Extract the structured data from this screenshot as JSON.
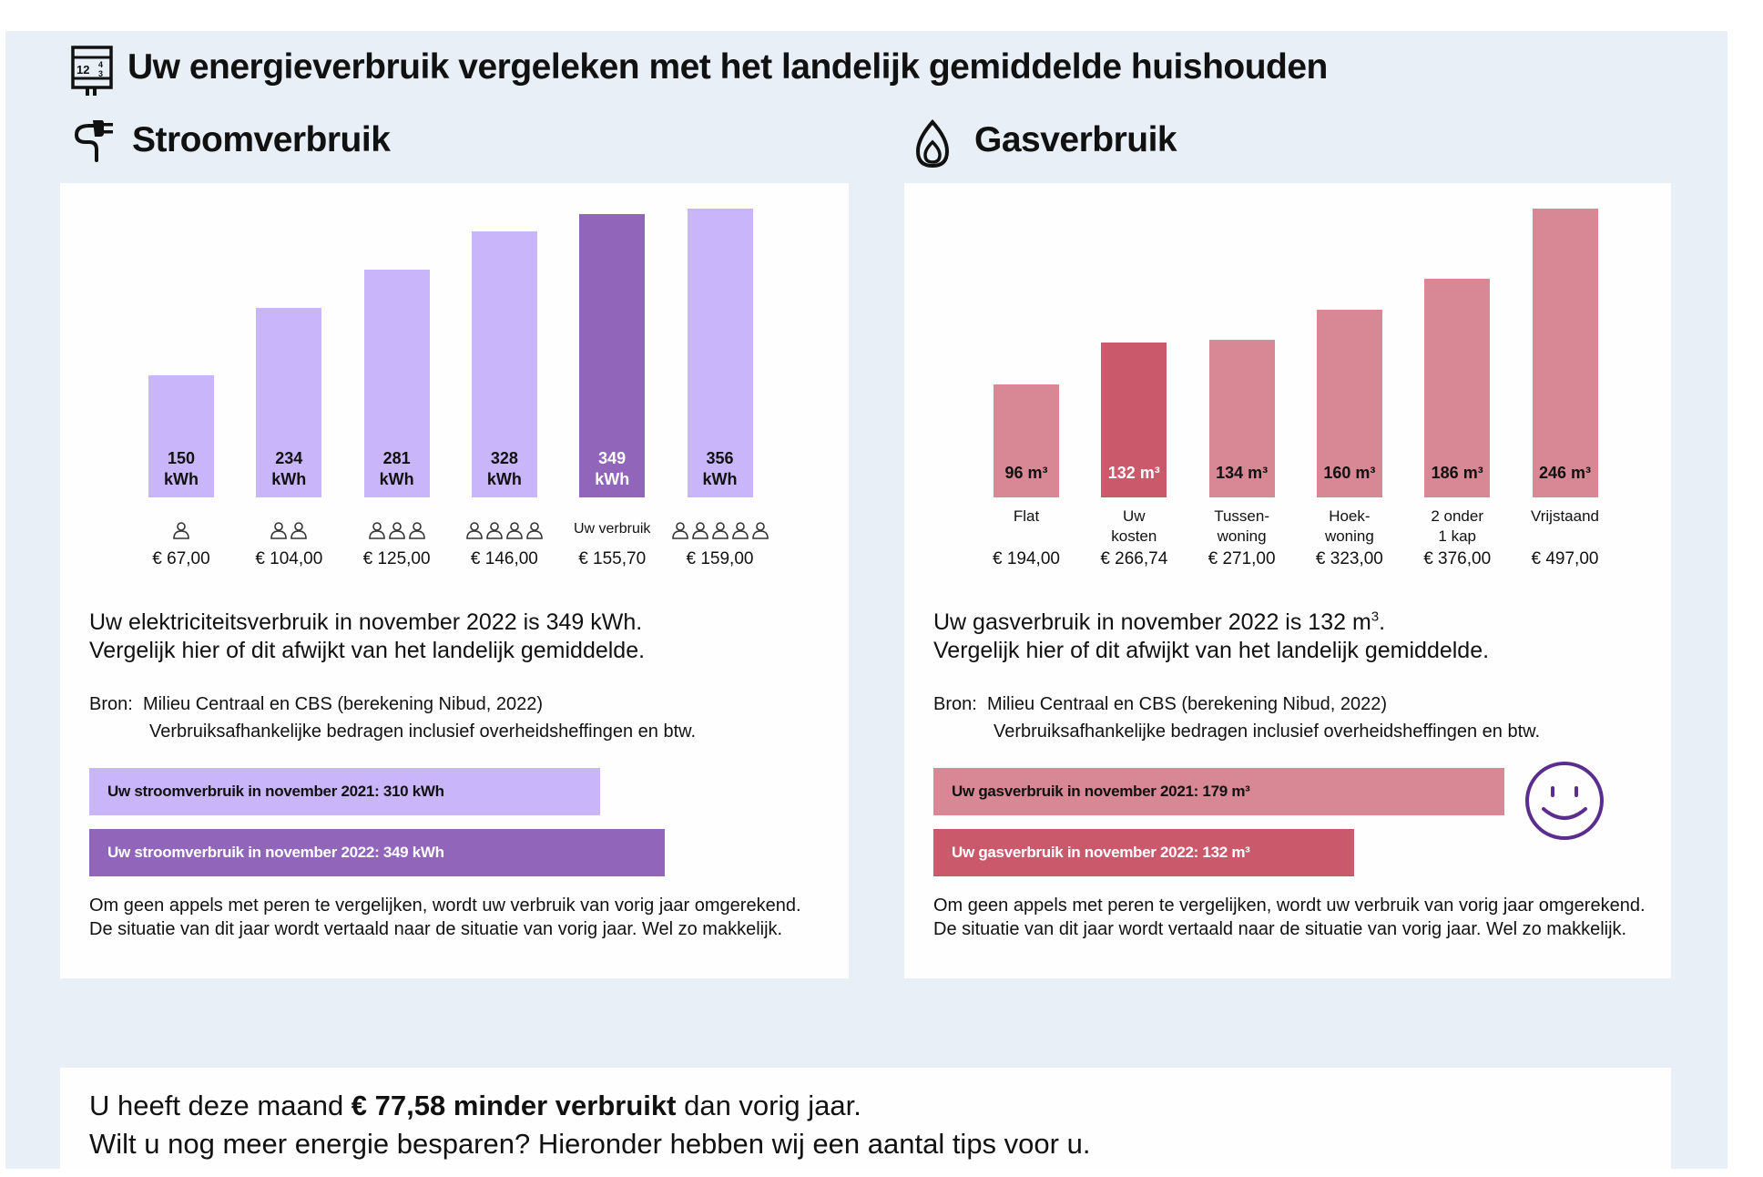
{
  "header": {
    "title": "Uw energieverbruik vergeleken met het landelijk gemiddelde huishouden",
    "icon": "meter-icon"
  },
  "stroom": {
    "title": "Stroomverbruik",
    "icon": "plug-icon",
    "intro_line1": "Uw elektriciteitsverbruik in november 2022 is 349 kWh.",
    "intro_line2": "Vergelijk hier of dit afwijkt van het landelijk gemiddelde.",
    "source_label": "Bron:",
    "source_line1": "Milieu Centraal en CBS (berekening Nibud, 2022)",
    "source_line2": "Verbruiksafhankelijke bedragen inclusief overheidsheffingen en btw.",
    "compare_2021": "Uw stroomverbruik in november 2021: 310 kWh",
    "compare_2022": "Uw stroomverbruik in november 2022: 349 kWh",
    "compare_values": [
      310,
      349
    ],
    "note": "Om geen appels met peren te vergelijken, wordt uw verbruik van vorig jaar omgerekend. De situatie van dit jaar wordt vertaald naar de situatie van vorig jaar. Wel zo makkelijk."
  },
  "gas": {
    "title": "Gasverbruik",
    "icon": "flame-icon",
    "intro_line1": "Uw gasverbruik in november 2022 is 132 m",
    "intro_sup": "3",
    "intro_end": ".",
    "intro_line2": "Vergelijk hier of dit afwijkt van het landelijk gemiddelde.",
    "source_label": "Bron:",
    "source_line1": "Milieu Centraal en CBS (berekening Nibud, 2022)",
    "source_line2": "Verbruiksafhankelijke bedragen inclusief overheidsheffingen en btw.",
    "compare_2021": "Uw gasverbruik in november 2021: 179 m³",
    "compare_2022": "Uw gasverbruik in november 2022: 132 m³",
    "compare_values": [
      179,
      132
    ],
    "smiley": "smiley-icon",
    "note": "Om geen appels met peren te vergelijken, wordt uw verbruik van vorig jaar omgerekend. De situatie van dit jaar wordt vertaald naar de situatie van vorig jaar. Wel zo makkelijk."
  },
  "summary": {
    "pre": "U heeft deze maand ",
    "bold": "€ 77,58 minder verbruikt",
    "post": " dan vorig jaar.",
    "line2": "Wilt u nog meer energie besparen? Hieronder hebben wij een aantal tips voor u."
  },
  "colors": {
    "stroom_light": "#c9b5fa",
    "stroom_dark": "#9165ba",
    "gas_light": "#d88894",
    "gas_dark": "#c9596b",
    "smiley": "#5b2d8e",
    "frame": "#e8eff7"
  },
  "chart_data": [
    {
      "type": "bar",
      "title": "Stroomverbruik",
      "unit": "kWh",
      "categories": [
        "1 persoon",
        "2 personen",
        "3 personen",
        "4 personen",
        "Uw verbruik",
        "5 personen"
      ],
      "persons": [
        1,
        2,
        3,
        4,
        0,
        5
      ],
      "category_text": [
        "",
        "",
        "",
        "",
        "Uw verbruik",
        ""
      ],
      "values": [
        150,
        234,
        281,
        328,
        349,
        356
      ],
      "value_labels": [
        [
          "150",
          "kWh"
        ],
        [
          "234",
          "kWh"
        ],
        [
          "281",
          "kWh"
        ],
        [
          "328",
          "kWh"
        ],
        [
          "349",
          "kWh"
        ],
        [
          "356",
          "kWh"
        ]
      ],
      "prices": [
        "€ 67,00",
        "€ 104,00",
        "€ 125,00",
        "€ 146,00",
        "€ 155,70",
        "€ 159,00"
      ],
      "highlight_index": 4,
      "ylim": [
        0,
        356
      ]
    },
    {
      "type": "bar",
      "title": "Gasverbruik",
      "unit": "m³",
      "categories": [
        "Flat",
        "Uw kosten",
        "Tussenwoning",
        "Hoekwoning",
        "2 onder 1 kap",
        "Vrijstaand"
      ],
      "category_lines": [
        [
          "Flat"
        ],
        [
          "Uw",
          "kosten"
        ],
        [
          "Tussen-",
          "woning"
        ],
        [
          "Hoek-",
          "woning"
        ],
        [
          "2 onder",
          "1 kap"
        ],
        [
          "Vrijstaand"
        ]
      ],
      "values": [
        96,
        132,
        134,
        160,
        186,
        246
      ],
      "value_labels": [
        "96 m³",
        "132 m³",
        "134 m³",
        "160 m³",
        "186 m³",
        "246 m³"
      ],
      "prices": [
        "€ 194,00",
        "€ 266,74",
        "€ 271,00",
        "€ 323,00",
        "€ 376,00",
        "€ 497,00"
      ],
      "highlight_index": 1,
      "ylim": [
        0,
        246
      ]
    }
  ]
}
